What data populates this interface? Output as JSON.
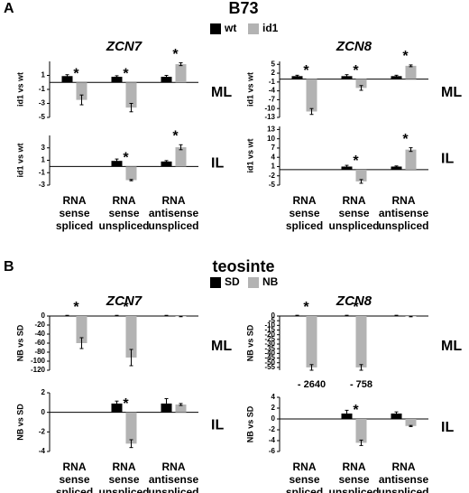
{
  "panels": [
    {
      "label": "A",
      "title": "B73"
    },
    {
      "label": "B",
      "title": "teosinte"
    }
  ],
  "chart_data": [
    {
      "type": "bar",
      "title": "ZCN7",
      "side_label": "ML",
      "ylabel": "id1 vs wt",
      "legend": true,
      "categories": [
        null,
        null,
        null
      ],
      "ylim": [
        -5,
        3
      ],
      "yticks": [
        1,
        -1,
        -3,
        -5
      ],
      "series": [
        {
          "name": "wt",
          "color": "#000000",
          "values": [
            0.9,
            0.8,
            0.8
          ],
          "errors": [
            0.2,
            0.15,
            0.2
          ]
        },
        {
          "name": "id1",
          "color": "#b3b3b3",
          "values": [
            -2.5,
            -3.6,
            2.6
          ],
          "errors": [
            0.7,
            0.6,
            0.2
          ],
          "significance": [
            "*",
            "*",
            "*"
          ]
        }
      ]
    },
    {
      "type": "bar",
      "side_label": "IL",
      "ylabel": "id1 vs wt",
      "categories": [
        "RNA\nsense\nspliced",
        "RNA\nsense\nunspliced",
        "RNA\nantisense\nunspliced"
      ],
      "ylim": [
        -3,
        5
      ],
      "yticks": [
        3,
        1,
        -1,
        -3
      ],
      "series": [
        {
          "color": "#000000",
          "values": [
            null,
            0.9,
            0.8
          ],
          "errors": [
            null,
            0.3,
            0.15
          ]
        },
        {
          "color": "#b3b3b3",
          "values": [
            null,
            -2.2,
            3.1
          ],
          "errors": [
            null,
            0.1,
            0.4
          ],
          "significance": [
            null,
            "*",
            "*"
          ]
        }
      ]
    },
    {
      "type": "bar",
      "title": "ZCN8",
      "side_label": "ML",
      "ylabel": "id1 vs wt",
      "categories": [
        null,
        null,
        null
      ],
      "ylim": [
        -13,
        6
      ],
      "yticks": [
        5,
        2,
        -1,
        -4,
        -7,
        -10,
        -13
      ],
      "series": [
        {
          "color": "#000000",
          "values": [
            1,
            1,
            1
          ],
          "errors": [
            0.3,
            0.5,
            0.3
          ]
        },
        {
          "color": "#b3b3b3",
          "values": [
            -11,
            -3,
            4.5
          ],
          "errors": [
            1,
            0.8,
            0.3
          ],
          "significance": [
            "*",
            "*",
            "*"
          ]
        }
      ]
    },
    {
      "type": "bar",
      "side_label": "IL",
      "ylabel": "id1 vs wt",
      "categories": [
        "RNA\nsense\nspliced",
        "RNA\nsense\nunspliced",
        "RNA\nantisense\nunspliced"
      ],
      "ylim": [
        -5,
        14
      ],
      "yticks": [
        13,
        10,
        7,
        4,
        1,
        -2,
        -5
      ],
      "series": [
        {
          "color": "#000000",
          "values": [
            null,
            1,
            1
          ],
          "errors": [
            null,
            0.4,
            0.2
          ]
        },
        {
          "color": "#b3b3b3",
          "values": [
            null,
            -3.8,
            6.5
          ],
          "errors": [
            null,
            0.6,
            0.6
          ],
          "significance": [
            null,
            "*",
            "*"
          ]
        }
      ]
    },
    {
      "type": "bar",
      "title": "ZCN7",
      "side_label": "ML",
      "ylabel": "NB vs SD",
      "legend": true,
      "categories": [
        null,
        null,
        null
      ],
      "ylim": [
        -120,
        0
      ],
      "yticks": [
        0,
        -20,
        -40,
        -60,
        -80,
        -100,
        -120
      ],
      "series": [
        {
          "name": "SD",
          "color": "#000000",
          "values": [
            1,
            1,
            1
          ],
          "errors": [
            0.5,
            0.5,
            0.5
          ]
        },
        {
          "name": "NB",
          "color": "#b3b3b3",
          "values": [
            -60,
            -92,
            -1
          ],
          "errors": [
            12,
            18,
            0.5
          ],
          "significance": [
            "*",
            "*",
            null
          ]
        }
      ]
    },
    {
      "type": "bar",
      "side_label": "IL",
      "ylabel": "NB vs SD",
      "categories": [
        "RNA\nsense\nspliced",
        "RNA\nsense\nunspliced",
        "RNA\nantisense\nunspliced"
      ],
      "ylim": [
        -4,
        2
      ],
      "yticks": [
        2,
        0,
        -2,
        -4
      ],
      "series": [
        {
          "color": "#000000",
          "values": [
            null,
            0.9,
            0.9
          ],
          "errors": [
            null,
            0.25,
            0.5
          ]
        },
        {
          "color": "#b3b3b3",
          "values": [
            null,
            -3.2,
            0.8
          ],
          "errors": [
            null,
            0.4,
            0.1
          ],
          "significance": [
            null,
            "*",
            null
          ]
        }
      ]
    },
    {
      "type": "bar",
      "title": "ZCN8",
      "side_label": "ML",
      "ylabel": "NB vs SD",
      "categories": [
        null,
        null,
        null
      ],
      "ylim": [
        -58,
        0
      ],
      "yticks": [
        0,
        -5,
        -10,
        -15,
        -20,
        -25,
        -30,
        -35,
        -40,
        -45,
        -50,
        -55
      ],
      "series": [
        {
          "color": "#000000",
          "values": [
            0.5,
            0.5,
            0.5
          ],
          "errors": [
            0.3,
            0.3,
            0.3
          ]
        },
        {
          "color": "#b3b3b3",
          "values": [
            -55,
            -55,
            -0.5
          ],
          "errors": [
            3,
            3,
            0.3
          ],
          "significance": [
            "*",
            "*",
            null
          ],
          "bar_notes": [
            "- 2640",
            "- 758",
            null
          ]
        }
      ]
    },
    {
      "type": "bar",
      "side_label": "IL",
      "ylabel": "NB vs SD",
      "categories": [
        "RNA\nsense\nspliced",
        "RNA\nsense\nunspliced",
        "RNA\nantisense\nunspliced"
      ],
      "ylim": [
        -6,
        4
      ],
      "yticks": [
        4,
        2,
        0,
        -2,
        -4,
        -6
      ],
      "series": [
        {
          "color": "#000000",
          "values": [
            null,
            1,
            1
          ],
          "errors": [
            null,
            0.6,
            0.3
          ]
        },
        {
          "color": "#b3b3b3",
          "values": [
            null,
            -4.4,
            -1.3
          ],
          "errors": [
            null,
            0.5,
            0.1
          ],
          "significance": [
            null,
            "*",
            null
          ]
        }
      ]
    }
  ]
}
